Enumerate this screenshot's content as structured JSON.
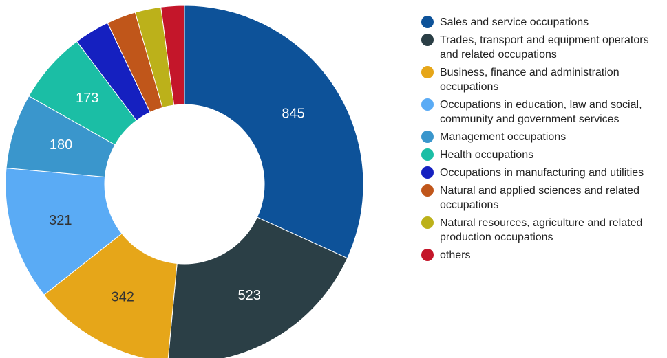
{
  "chart_data": {
    "type": "donut",
    "categories": [
      "Sales and service occupations",
      "Trades, transport and equipment operators and related occupations",
      "Business, finance and administration occupations",
      "Occupations in education, law and social, community and government services",
      "Management occupations",
      "Health occupations",
      "Occupations in manufacturing and utilities",
      "Natural and applied sciences and related occupations",
      "Natural resources, agriculture and related production occupations",
      "others"
    ],
    "values": [
      845,
      523,
      342,
      321,
      180,
      173,
      85,
      70,
      62,
      56
    ],
    "colors": [
      "#0d5299",
      "#2b3f46",
      "#e6a619",
      "#5aabf5",
      "#3a96cc",
      "#1bbea5",
      "#1520c0",
      "#c0561a",
      "#bcb11a",
      "#c4162a"
    ],
    "legend": "right"
  }
}
